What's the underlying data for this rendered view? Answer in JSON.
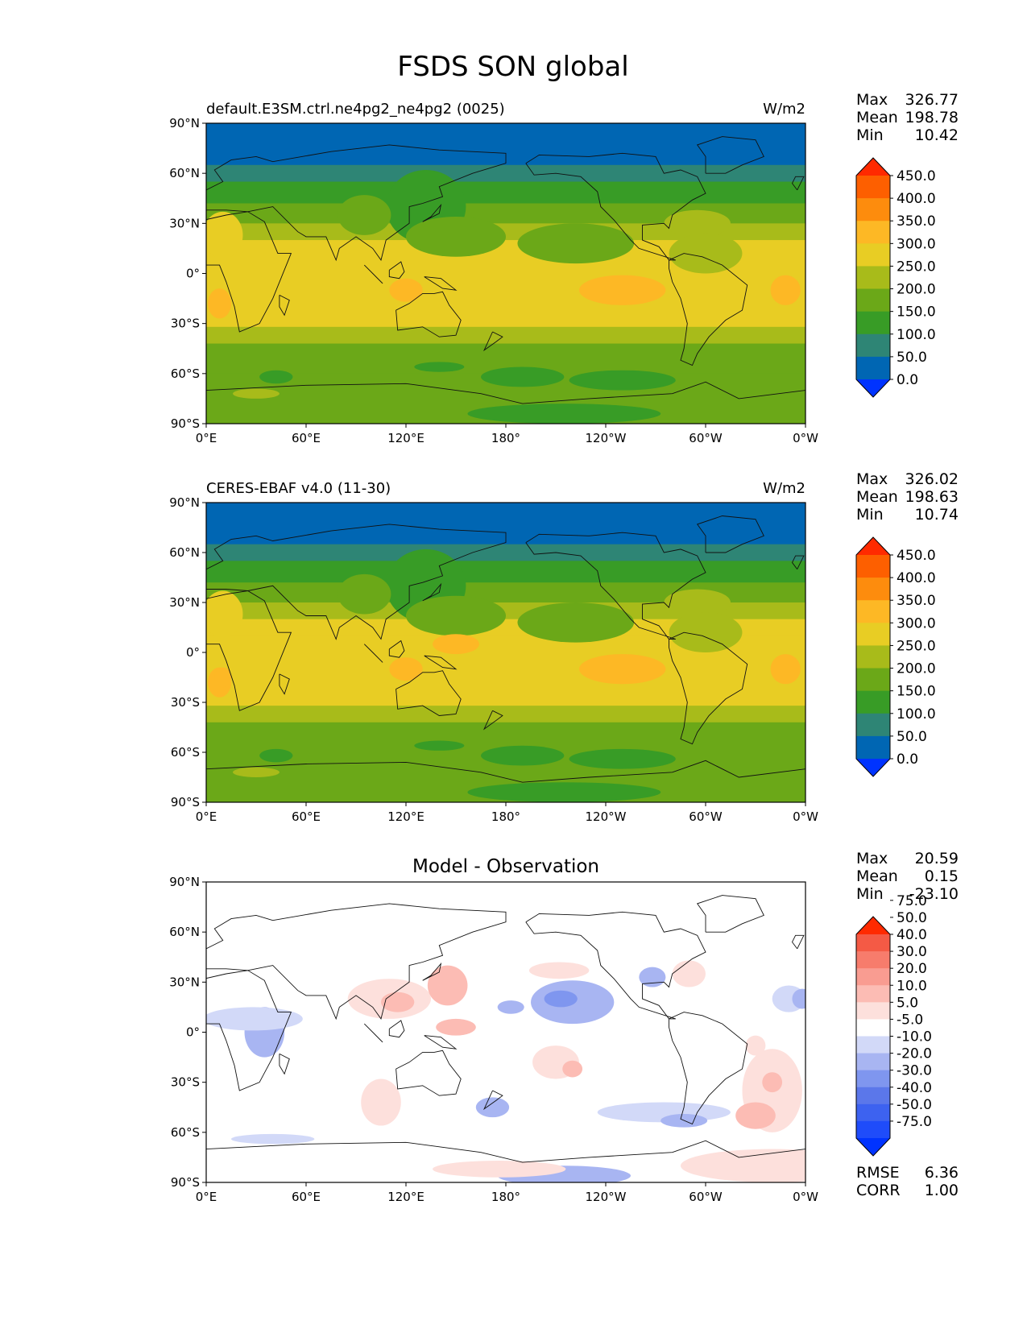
{
  "figure_title": "FSDS SON global",
  "map_ticks": {
    "x": [
      "0°E",
      "60°E",
      "120°E",
      "180°",
      "120°W",
      "60°W",
      "0°W"
    ],
    "y": [
      "90°N",
      "60°N",
      "30°N",
      "0°",
      "30°S",
      "60°S",
      "90°S"
    ]
  },
  "stat_labels": {
    "max": "Max",
    "mean": "Mean",
    "min": "Min",
    "rmse": "RMSE",
    "corr": "CORR"
  },
  "colors": {
    "field": [
      "#0033ff",
      "#0066b3",
      "#2e8575",
      "#389c26",
      "#6ba818",
      "#a8bb1a",
      "#e8cd24",
      "#fdb825",
      "#fd8c0d",
      "#fd5f00",
      "#ff2a00"
    ],
    "diff": [
      "#0033ff",
      "#1f4cfa",
      "#3d62f0",
      "#5b77ea",
      "#7f96ef",
      "#a8b5f2",
      "#d2d9f8",
      "#ffffff",
      "#fde0dc",
      "#fcbcb4",
      "#f99c91",
      "#f77c6c",
      "#f45a45",
      "#ff2a00"
    ]
  },
  "chart_data": [
    {
      "type": "heatmap",
      "title": "default.E3SM.ctrl.ne4pg2_ne4pg2 (0025)",
      "units": "W/m2",
      "stats": {
        "max": "326.77",
        "mean": "198.78",
        "min": "10.42"
      },
      "x_range": [
        0,
        360
      ],
      "y_range": [
        -90,
        90
      ],
      "colorbar": {
        "levels": [
          "0.0",
          "50.0",
          "100.0",
          "150.0",
          "200.0",
          "250.0",
          "300.0",
          "350.0",
          "400.0",
          "450.0"
        ]
      }
    },
    {
      "type": "heatmap",
      "title": "CERES-EBAF v4.0 (11-30)",
      "units": "W/m2",
      "stats": {
        "max": "326.02",
        "mean": "198.63",
        "min": "10.74"
      },
      "x_range": [
        0,
        360
      ],
      "y_range": [
        -90,
        90
      ],
      "colorbar": {
        "levels": [
          "0.0",
          "50.0",
          "100.0",
          "150.0",
          "200.0",
          "250.0",
          "300.0",
          "350.0",
          "400.0",
          "450.0"
        ]
      }
    },
    {
      "type": "heatmap",
      "title": "Model - Observation",
      "units": "",
      "stats": {
        "max": "20.59",
        "mean": "0.15",
        "min": "-23.10",
        "rmse": "6.36",
        "corr": "1.00"
      },
      "x_range": [
        0,
        360
      ],
      "y_range": [
        -90,
        90
      ],
      "colorbar": {
        "levels": [
          "-75.0",
          "-50.0",
          "-40.0",
          "-30.0",
          "-20.0",
          "-10.0",
          "-5.0",
          "5.0",
          "10.0",
          "20.0",
          "30.0",
          "40.0",
          "50.0",
          "75.0"
        ]
      }
    }
  ]
}
